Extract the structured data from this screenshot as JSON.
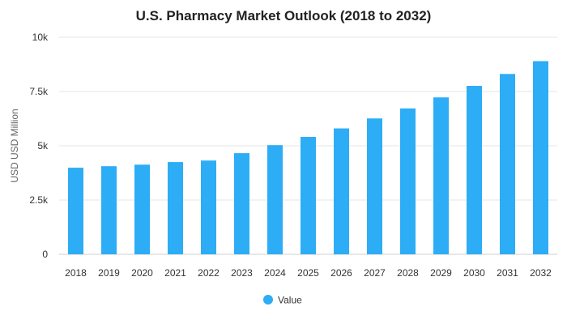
{
  "chart_data": {
    "type": "bar",
    "title": "U.S. Pharmacy Market Outlook (2018 to 2032)",
    "xlabel": "",
    "ylabel": "USD USD Million",
    "categories": [
      "2018",
      "2019",
      "2020",
      "2021",
      "2022",
      "2023",
      "2024",
      "2025",
      "2026",
      "2027",
      "2028",
      "2029",
      "2030",
      "2031",
      "2032"
    ],
    "series": [
      {
        "name": "Value",
        "values": [
          3990,
          4060,
          4130,
          4250,
          4320,
          4660,
          5030,
          5410,
          5800,
          6260,
          6720,
          7230,
          7760,
          8310,
          8900
        ]
      }
    ],
    "ylim": [
      0,
      10000
    ],
    "yticks": [
      0,
      2500,
      5000,
      7500,
      10000
    ],
    "ytick_labels": [
      "0",
      "2.5k",
      "5k",
      "7.5k",
      "10k"
    ],
    "grid": true,
    "legend_position": "bottom-center",
    "colors": {
      "bar": "#2cadf6"
    }
  }
}
